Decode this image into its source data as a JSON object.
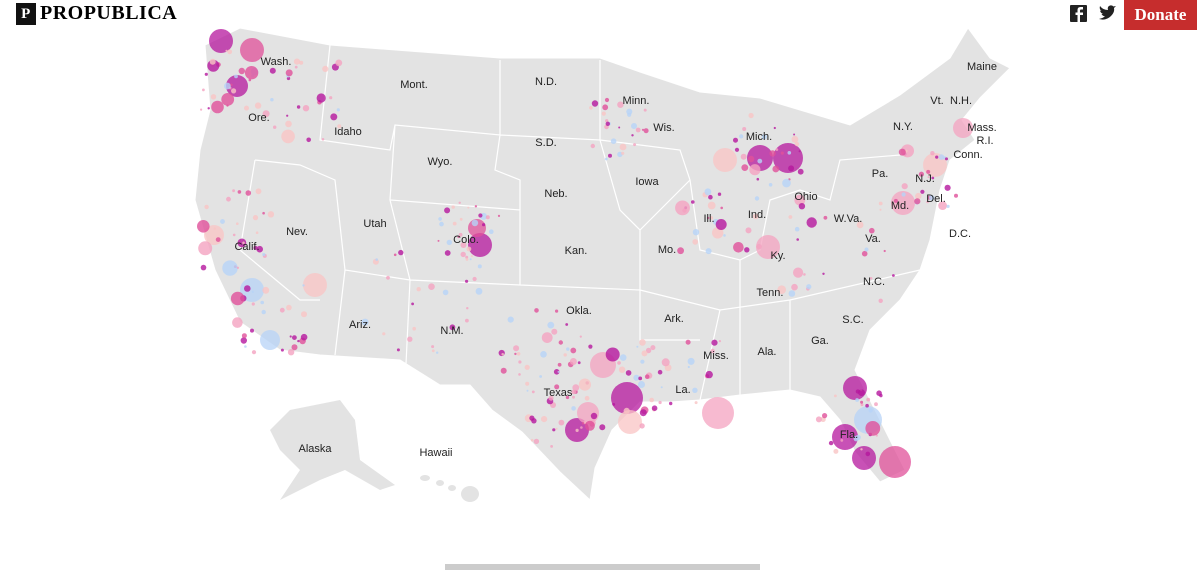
{
  "header": {
    "logo": "PROPUBLICA",
    "donate": "Donate"
  },
  "map": {
    "labels": [
      "Wash.",
      "Mont.",
      "N.D.",
      "Maine",
      "Minn.",
      "Ore.",
      "Idaho",
      "Wis.",
      "Mich.",
      "N.Y.",
      "Vt.",
      "N.H.",
      "Mass.",
      "R.I.",
      "Conn.",
      "S.D.",
      "Wyo.",
      "Iowa",
      "Pa.",
      "N.J.",
      "Neb.",
      "Ohio",
      "Md.",
      "Del.",
      "Nev.",
      "Utah",
      "Colo.",
      "Ill.",
      "Ind.",
      "W.Va.",
      "Va.",
      "D.C.",
      "Calif.",
      "Kan.",
      "Mo.",
      "Ky.",
      "N.C.",
      "Tenn.",
      "Okla.",
      "Ariz.",
      "N.M.",
      "Ark.",
      "S.C.",
      "Ga.",
      "Ala.",
      "Miss.",
      "Texas",
      "La.",
      "Fla.",
      "Alaska",
      "Hawaii"
    ]
  }
}
